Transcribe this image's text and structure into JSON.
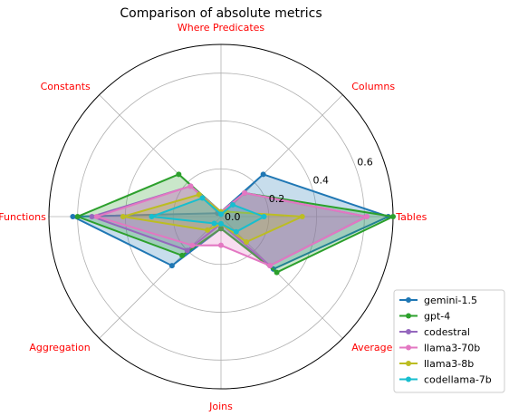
{
  "chart_data": {
    "type": "radar",
    "title": "Comparison of absolute metrics",
    "axes": [
      "Tables",
      "Columns",
      "Where Predicates",
      "Constants",
      "Functions",
      "Aggregation",
      "Joins",
      "Average"
    ],
    "radial_ticks": [
      "0.0",
      "0.2",
      "0.4",
      "0.6"
    ],
    "rmax": 0.72,
    "axis_label_color": "#ff0000",
    "legend_position": "lower-right",
    "series": [
      {
        "name": "gemini-1.5",
        "color": "#1f77b4",
        "values": [
          0.7,
          0.25,
          0.02,
          0.02,
          0.62,
          0.29,
          0.05,
          0.31
        ]
      },
      {
        "name": "gpt-4",
        "color": "#2ca02c",
        "values": [
          0.72,
          0.14,
          0.02,
          0.25,
          0.6,
          0.23,
          0.05,
          0.33
        ]
      },
      {
        "name": "codestral",
        "color": "#9467bd",
        "values": [
          0.61,
          0.14,
          0.02,
          0.18,
          0.54,
          0.2,
          0.03,
          0.29
        ]
      },
      {
        "name": "llama3-70b",
        "color": "#e377c2",
        "values": [
          0.61,
          0.14,
          0.02,
          0.18,
          0.52,
          0.17,
          0.12,
          0.29
        ]
      },
      {
        "name": "llama3-8b",
        "color": "#bcbd22",
        "values": [
          0.34,
          0.03,
          0.02,
          0.13,
          0.41,
          0.08,
          0.03,
          0.15
        ]
      },
      {
        "name": "codellama-7b",
        "color": "#17becf",
        "values": [
          0.18,
          0.07,
          0.01,
          0.11,
          0.29,
          0.04,
          0.03,
          0.09
        ]
      }
    ]
  }
}
